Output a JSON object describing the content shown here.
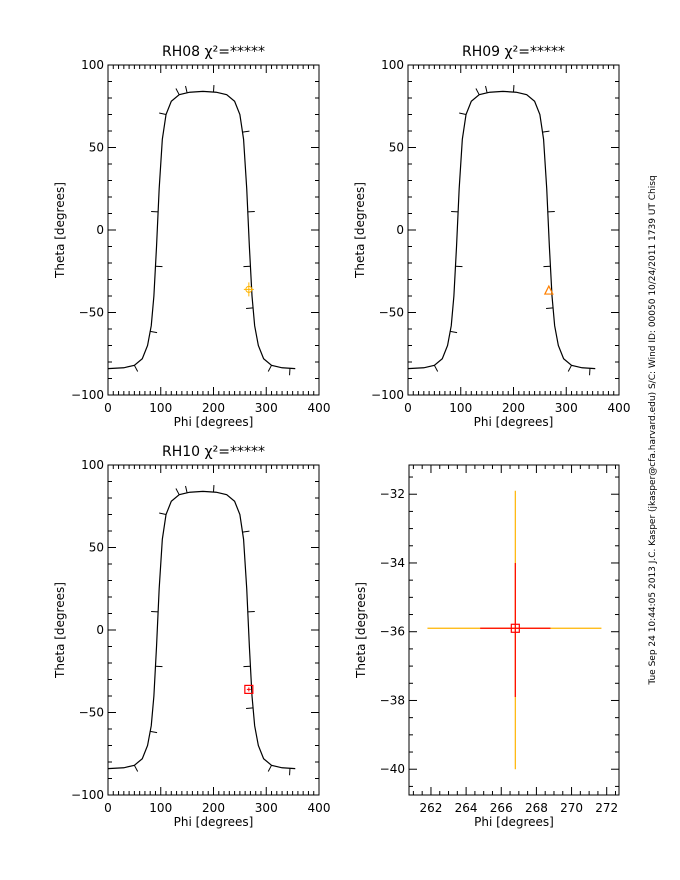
{
  "side_label": "Tue Sep 24 10:44:05 2013   J.C. Kasper (jkasper@cfa.harvard.edu)   S/C: Wind ID: 00050 10/24/2011   1739 UT Chisq",
  "colors": {
    "curve": "#000000",
    "yellow": "#ffb400",
    "orange": "#ff8000",
    "red": "#ff0000"
  },
  "chart_data": [
    {
      "type": "line",
      "title": "RH08  χ²=*****",
      "xlabel": "Phi [degrees]",
      "ylabel": "Theta [degrees]",
      "xlim": [
        0,
        400
      ],
      "ylim": [
        -100,
        100
      ],
      "xticks": [
        "0",
        "100",
        "200",
        "300",
        "400"
      ],
      "yticks": [
        "-100",
        "-50",
        "0",
        "50",
        "100"
      ],
      "curve": {
        "phi": [
          0,
          30,
          50,
          65,
          75,
          82,
          87,
          92,
          97,
          103,
          110,
          120,
          135,
          155,
          180,
          205,
          225,
          240,
          250,
          257,
          263,
          268,
          273,
          278,
          285,
          295,
          310,
          330,
          355
        ],
        "theta": [
          -84,
          -83.5,
          -82,
          -78,
          -70,
          -58,
          -40,
          -10,
          25,
          55,
          70,
          78,
          82,
          83.5,
          84,
          83.5,
          82,
          78,
          70,
          55,
          25,
          -10,
          -40,
          -58,
          -70,
          -78,
          -82,
          -83.5,
          -84
        ]
      },
      "curve_tick_phi": [
        50,
        80,
        90,
        95,
        110,
        135,
        150,
        200,
        255,
        265,
        270,
        275,
        310,
        345
      ],
      "marker": {
        "phi": 267,
        "theta": -36,
        "symbol": "circle-plus",
        "color": "yellow"
      }
    },
    {
      "type": "line",
      "title": "RH09  χ²=*****",
      "xlabel": "Phi [degrees]",
      "ylabel": "Theta [degrees]",
      "xlim": [
        0,
        400
      ],
      "ylim": [
        -100,
        100
      ],
      "xticks": [
        "0",
        "100",
        "200",
        "300",
        "400"
      ],
      "yticks": [
        "-100",
        "-50",
        "0",
        "50",
        "100"
      ],
      "marker": {
        "phi": 267,
        "theta": -37,
        "symbol": "triangle",
        "color": "orange"
      }
    },
    {
      "type": "line",
      "title": "RH10  χ²=*****",
      "xlabel": "Phi [degrees]",
      "ylabel": "Theta [degrees]",
      "xlim": [
        0,
        400
      ],
      "ylim": [
        -100,
        100
      ],
      "xticks": [
        "0",
        "100",
        "200",
        "300",
        "400"
      ],
      "yticks": [
        "-100",
        "-50",
        "0",
        "50",
        "100"
      ],
      "marker": {
        "phi": 267,
        "theta": -36,
        "symbol": "square",
        "color": "red"
      }
    },
    {
      "type": "scatter",
      "title": "",
      "xlabel": "Phi [degrees]",
      "ylabel": "Theta [degrees]",
      "xlim": [
        260.75,
        272.7
      ],
      "ylim": [
        -40.75,
        -31.15
      ],
      "xticks": [
        "262",
        "264",
        "266",
        "268",
        "270",
        "272"
      ],
      "yticks": [
        "-40",
        "-38",
        "-36",
        "-34",
        "-32"
      ],
      "center": {
        "phi": 266.8,
        "theta": -35.9
      },
      "yellow_errors": {
        "phi": [
          261.8,
          271.7
        ],
        "theta": [
          -40,
          -31.9
        ]
      },
      "red_errors": {
        "phi": [
          264.8,
          268.8
        ],
        "theta": [
          -37.9,
          -34
        ]
      }
    }
  ]
}
